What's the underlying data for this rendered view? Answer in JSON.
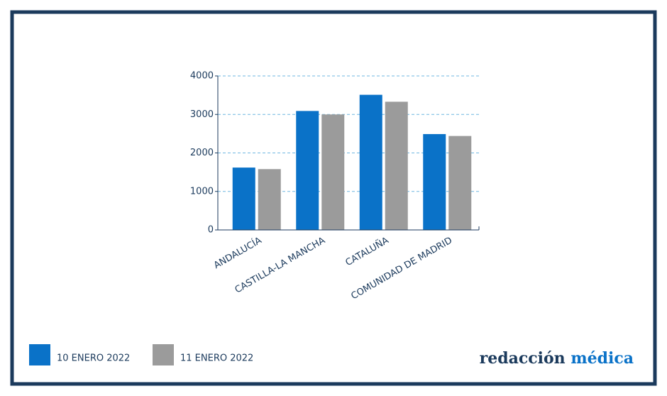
{
  "chart_data": {
    "type": "bar",
    "categories": [
      "ANDALUCÍA",
      "CASTILLA-LA MANCHA",
      "CATALUÑA",
      "COMUNIDAD DE MADRID"
    ],
    "series": [
      {
        "name": "10 ENERO 2022",
        "color": "#0a72c8",
        "values": [
          1620,
          3090,
          3510,
          2490
        ]
      },
      {
        "name": "11 ENERO 2022",
        "color": "#9b9b9b",
        "values": [
          1580,
          3000,
          3330,
          2440
        ]
      }
    ],
    "ylim": [
      0,
      4000
    ],
    "yticks": [
      0,
      1000,
      2000,
      3000,
      4000
    ],
    "grid": true
  },
  "logo": {
    "first": "redacción",
    "second": "médica"
  }
}
